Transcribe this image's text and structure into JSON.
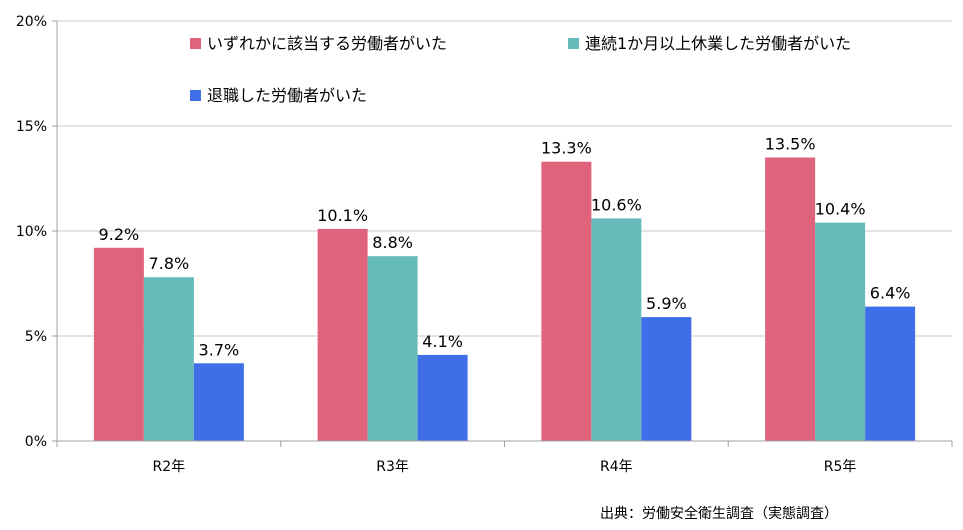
{
  "chart_data": {
    "type": "bar",
    "categories": [
      "R2年",
      "R3年",
      "R4年",
      "R5年"
    ],
    "series": [
      {
        "name": "いずれかに該当する労働者がいた",
        "values": [
          9.2,
          10.1,
          13.3,
          13.5
        ],
        "labels": [
          "9.2%",
          "10.1%",
          "13.3%",
          "13.5%"
        ],
        "color": "#e0637c"
      },
      {
        "name": "連続1か月以上休業した労働者がいた",
        "values": [
          7.8,
          8.8,
          10.6,
          10.4
        ],
        "labels": [
          "7.8%",
          "8.8%",
          "10.6%",
          "10.4%"
        ],
        "color": "#67bbba"
      },
      {
        "name": "退職した労働者がいた",
        "values": [
          3.7,
          4.1,
          5.9,
          6.4
        ],
        "labels": [
          "3.7%",
          "4.1%",
          "5.9%",
          "6.4%"
        ],
        "color": "#3f6fe8"
      }
    ],
    "yticks": [
      0,
      5,
      10,
      15,
      20
    ],
    "ytick_labels": [
      "0%",
      "5%",
      "10%",
      "15%",
      "20%"
    ],
    "ylim": [
      0,
      20
    ],
    "grid": true,
    "legend_position": "top",
    "source": "出典：労働安全衛生調査（実態調査）"
  }
}
